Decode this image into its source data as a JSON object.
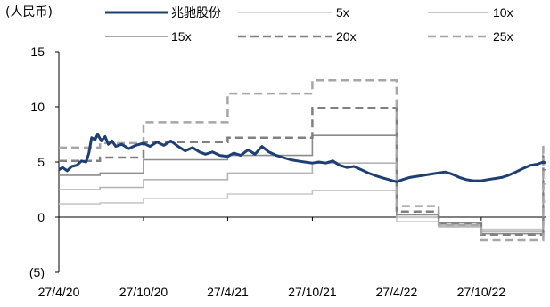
{
  "chart_data": {
    "type": "line",
    "unit_label": "(人民币)",
    "ylim": [
      -5,
      15
    ],
    "y_ticks": [
      {
        "value": 15,
        "label": "15"
      },
      {
        "value": 10,
        "label": "10"
      },
      {
        "value": 5,
        "label": "5"
      },
      {
        "value": 0,
        "label": "0"
      },
      {
        "value": -5,
        "label": "(5)"
      }
    ],
    "x_ticks": [
      {
        "date": "2020-04-27",
        "label": "27/4/20"
      },
      {
        "date": "2020-10-27",
        "label": "27/10/20"
      },
      {
        "date": "2021-04-27",
        "label": "27/4/21"
      },
      {
        "date": "2021-10-27",
        "label": "27/10/21"
      },
      {
        "date": "2022-04-27",
        "label": "27/4/22"
      },
      {
        "date": "2022-10-27",
        "label": "27/10/22"
      }
    ],
    "xlim": [
      "2020-04-27",
      "2023-03-15"
    ],
    "legend_placement": "top",
    "series": [
      {
        "name": "兆驰股份",
        "color": "#1f3f73",
        "style": "solid-thick",
        "points": [
          [
            "2020-04-27",
            4.3
          ],
          [
            "2020-05-05",
            4.5
          ],
          [
            "2020-05-15",
            4.2
          ],
          [
            "2020-05-25",
            4.6
          ],
          [
            "2020-06-05",
            4.7
          ],
          [
            "2020-06-15",
            5.1
          ],
          [
            "2020-06-25",
            5.0
          ],
          [
            "2020-07-01",
            5.8
          ],
          [
            "2020-07-07",
            7.2
          ],
          [
            "2020-07-14",
            7.0
          ],
          [
            "2020-07-20",
            7.5
          ],
          [
            "2020-07-28",
            6.9
          ],
          [
            "2020-08-05",
            7.3
          ],
          [
            "2020-08-12",
            6.6
          ],
          [
            "2020-08-20",
            6.9
          ],
          [
            "2020-08-28",
            6.4
          ],
          [
            "2020-09-10",
            6.6
          ],
          [
            "2020-09-25",
            6.2
          ],
          [
            "2020-10-10",
            6.5
          ],
          [
            "2020-10-27",
            6.7
          ],
          [
            "2020-11-10",
            6.4
          ],
          [
            "2020-11-25",
            6.8
          ],
          [
            "2020-12-10",
            6.5
          ],
          [
            "2020-12-25",
            6.9
          ],
          [
            "2021-01-10",
            6.4
          ],
          [
            "2021-01-25",
            6.0
          ],
          [
            "2021-02-10",
            6.3
          ],
          [
            "2021-02-25",
            5.9
          ],
          [
            "2021-03-10",
            5.7
          ],
          [
            "2021-03-25",
            5.9
          ],
          [
            "2021-04-10",
            5.6
          ],
          [
            "2021-04-27",
            5.5
          ],
          [
            "2021-05-10",
            5.8
          ],
          [
            "2021-05-25",
            5.6
          ],
          [
            "2021-06-10",
            6.1
          ],
          [
            "2021-06-25",
            5.7
          ],
          [
            "2021-07-10",
            6.4
          ],
          [
            "2021-07-25",
            5.9
          ],
          [
            "2021-08-10",
            5.6
          ],
          [
            "2021-08-25",
            5.4
          ],
          [
            "2021-09-10",
            5.2
          ],
          [
            "2021-09-25",
            5.1
          ],
          [
            "2021-10-10",
            5.0
          ],
          [
            "2021-10-27",
            4.9
          ],
          [
            "2021-11-10",
            5.0
          ],
          [
            "2021-11-25",
            4.9
          ],
          [
            "2021-12-10",
            5.1
          ],
          [
            "2021-12-25",
            4.7
          ],
          [
            "2022-01-10",
            4.5
          ],
          [
            "2022-01-25",
            4.6
          ],
          [
            "2022-02-10",
            4.3
          ],
          [
            "2022-02-25",
            4.0
          ],
          [
            "2022-03-10",
            3.8
          ],
          [
            "2022-03-25",
            3.6
          ],
          [
            "2022-04-10",
            3.4
          ],
          [
            "2022-04-27",
            3.2
          ],
          [
            "2022-05-10",
            3.4
          ],
          [
            "2022-05-25",
            3.6
          ],
          [
            "2022-06-10",
            3.7
          ],
          [
            "2022-06-25",
            3.8
          ],
          [
            "2022-07-10",
            3.9
          ],
          [
            "2022-07-25",
            4.0
          ],
          [
            "2022-08-10",
            4.1
          ],
          [
            "2022-08-25",
            3.9
          ],
          [
            "2022-09-10",
            3.6
          ],
          [
            "2022-09-25",
            3.4
          ],
          [
            "2022-10-10",
            3.3
          ],
          [
            "2022-10-27",
            3.3
          ],
          [
            "2022-11-10",
            3.4
          ],
          [
            "2022-11-25",
            3.5
          ],
          [
            "2022-12-10",
            3.6
          ],
          [
            "2022-12-25",
            3.8
          ],
          [
            "2023-01-10",
            4.1
          ],
          [
            "2023-01-25",
            4.4
          ],
          [
            "2023-02-10",
            4.7
          ],
          [
            "2023-02-25",
            4.8
          ],
          [
            "2023-03-10",
            5.0
          ],
          [
            "2023-03-15",
            4.9
          ]
        ]
      },
      {
        "name": "5x",
        "color": "#c8c8c8",
        "style": "solid-thin",
        "steps": [
          [
            "2020-04-27",
            1.2
          ],
          [
            "2020-07-25",
            1.3
          ],
          [
            "2020-10-27",
            1.7
          ],
          [
            "2021-04-27",
            2.1
          ],
          [
            "2021-10-27",
            2.4
          ],
          [
            "2022-04-27",
            -0.4
          ],
          [
            "2022-07-27",
            -0.9
          ],
          [
            "2022-10-27",
            -1.1
          ],
          [
            "2023-03-10",
            1.4
          ],
          [
            "2023-03-15",
            1.4
          ]
        ]
      },
      {
        "name": "10x",
        "color": "#b4b4b4",
        "style": "solid-thin",
        "steps": [
          [
            "2020-04-27",
            2.5
          ],
          [
            "2020-07-25",
            2.7
          ],
          [
            "2020-10-27",
            3.4
          ],
          [
            "2021-04-27",
            4.0
          ],
          [
            "2021-10-27",
            4.9
          ],
          [
            "2022-04-27",
            0.0
          ],
          [
            "2022-07-27",
            -0.8
          ],
          [
            "2022-10-27",
            -1.3
          ],
          [
            "2023-03-10",
            3.0
          ],
          [
            "2023-03-15",
            3.0
          ]
        ]
      },
      {
        "name": "15x",
        "color": "#8c8c8c",
        "style": "solid-thin",
        "steps": [
          [
            "2020-04-27",
            3.8
          ],
          [
            "2020-07-25",
            4.0
          ],
          [
            "2020-10-27",
            5.2
          ],
          [
            "2021-04-27",
            5.6
          ],
          [
            "2021-10-27",
            7.4
          ],
          [
            "2022-04-27",
            0.2
          ],
          [
            "2022-07-27",
            -0.5
          ],
          [
            "2022-10-27",
            -1.5
          ],
          [
            "2023-03-10",
            4.3
          ],
          [
            "2023-03-15",
            4.3
          ]
        ]
      },
      {
        "name": "20x",
        "color": "#808080",
        "style": "dashed-thick",
        "steps": [
          [
            "2020-04-27",
            5.1
          ],
          [
            "2020-07-25",
            5.4
          ],
          [
            "2020-10-27",
            6.8
          ],
          [
            "2021-04-27",
            7.2
          ],
          [
            "2021-10-27",
            9.9
          ],
          [
            "2022-04-27",
            0.5
          ],
          [
            "2022-07-27",
            -0.6
          ],
          [
            "2022-10-27",
            -1.6
          ],
          [
            "2023-03-10",
            5.6
          ],
          [
            "2023-03-15",
            5.6
          ]
        ]
      },
      {
        "name": "25x",
        "color": "#a6a6a6",
        "style": "dashed-thick",
        "steps": [
          [
            "2020-04-27",
            6.3
          ],
          [
            "2020-07-25",
            6.7
          ],
          [
            "2020-10-27",
            8.6
          ],
          [
            "2021-04-27",
            11.2
          ],
          [
            "2021-10-27",
            12.4
          ],
          [
            "2022-04-27",
            1.0
          ],
          [
            "2022-07-27",
            -0.7
          ],
          [
            "2022-10-27",
            -2.1
          ],
          [
            "2023-03-10",
            6.5
          ],
          [
            "2023-03-15",
            6.5
          ]
        ]
      }
    ]
  }
}
